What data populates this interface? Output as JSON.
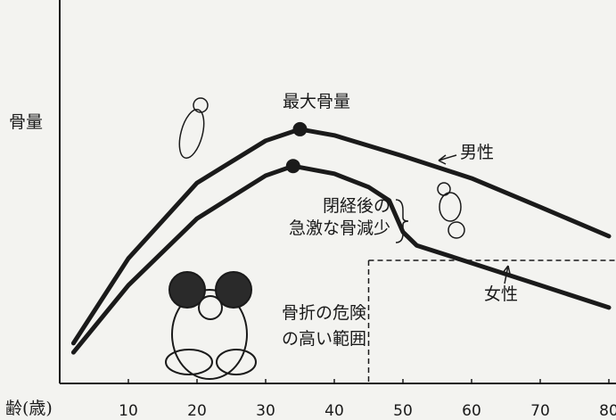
{
  "chart_data": {
    "type": "line",
    "y_label": "骨量",
    "x_label": "齢(歳)",
    "xlim": [
      0,
      80
    ],
    "xticks": [
      10,
      20,
      30,
      40,
      50,
      60,
      70,
      80
    ],
    "ylim": [
      0,
      100
    ],
    "series": [
      {
        "name": "男性",
        "color": "#1a1a1a",
        "x": [
          2,
          10,
          20,
          30,
          35,
          40,
          50,
          60,
          70,
          80
        ],
        "values": [
          10.5,
          32.6,
          52.3,
          63.3,
          66.3,
          64.7,
          59.3,
          53.5,
          46.0,
          38.4
        ]
      },
      {
        "name": "女性",
        "color": "#1a1a1a",
        "x": [
          2,
          10,
          20,
          30,
          34,
          40,
          45,
          48,
          50,
          52,
          60,
          70,
          80
        ],
        "values": [
          8.1,
          25.6,
          43.0,
          54.2,
          56.7,
          54.7,
          51.2,
          47.7,
          39.5,
          36.0,
          31.4,
          25.6,
          19.8
        ]
      }
    ],
    "fracture_threshold": {
      "value": 32.1,
      "age": 45
    },
    "annotations": {
      "peak": "最大骨量",
      "menopause": [
        "閉経後の",
        "急激な骨減少"
      ],
      "fracture_risk": [
        "骨折の危険",
        "の高い範囲"
      ]
    }
  }
}
